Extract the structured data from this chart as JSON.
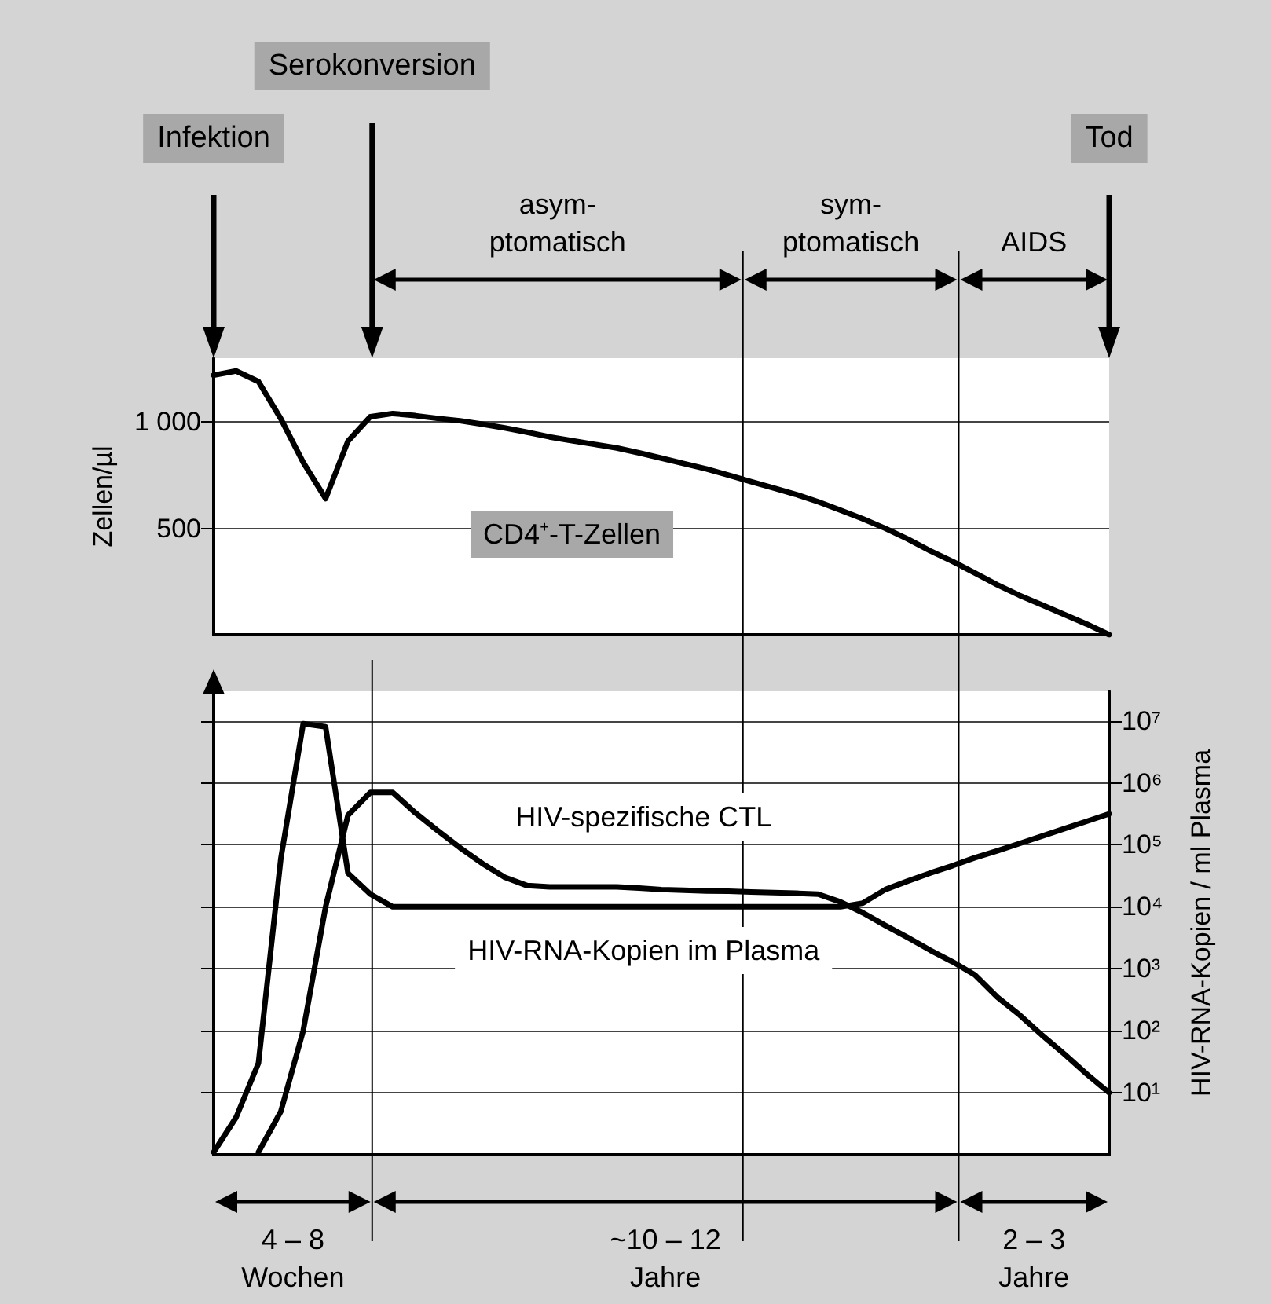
{
  "chart_data": [
    {
      "type": "line",
      "ylabel": "Zellen/µl",
      "categories": [
        null,
        null,
        null,
        null,
        null,
        null,
        null,
        null,
        null,
        null,
        null,
        null,
        null,
        null,
        null,
        null,
        null,
        null,
        null,
        null,
        null,
        null,
        null,
        null,
        null,
        null,
        null,
        null,
        null,
        null,
        null,
        null,
        null,
        null,
        null,
        null,
        null,
        null,
        null,
        null,
        null
      ],
      "ylim": [
        0,
        1300
      ],
      "yticks": [
        500,
        {
          "value": 1000,
          "label": "1 000"
        }
      ],
      "tick_labels": "y",
      "grid": "y",
      "marker": "none",
      "line_style": "solid",
      "series": [
        {
          "color": "#000000",
          "values": [
            1220,
            1240,
            1190,
            1015,
            810,
            640,
            910,
            1025,
            1040,
            1030,
            1017,
            1006,
            990,
            972,
            952,
            930,
            912,
            895,
            878,
            855,
            830,
            805,
            780,
            750,
            720,
            690,
            660,
            625,
            585,
            545,
            500,
            450,
            395,
            345,
            290,
            235,
            185,
            140,
            95,
            50,
            0
          ]
        }
      ],
      "annotations": [
        "Infektion",
        "Serokonversion",
        "Tod",
        "asym-\nptomatisch",
        "sym-\nptomatisch",
        "AIDS",
        "CD4⁺-T-Zellen"
      ]
    },
    {
      "type": "line",
      "ylabel": "HIV-RNA-Kopien / ml Plasma",
      "categories": [
        null,
        null,
        null,
        null,
        null,
        null,
        null,
        null,
        null,
        null,
        null,
        null,
        null,
        null,
        null,
        null,
        null,
        null,
        null,
        null,
        null,
        null,
        null,
        null,
        null,
        null,
        null,
        null,
        null,
        null,
        null,
        null,
        null,
        null,
        null,
        null,
        null,
        null,
        null,
        null,
        null
      ],
      "ylim": [
        1,
        30000000
      ],
      "log": true,
      "yticks": [
        {
          "value": 10,
          "label": "10¹"
        },
        {
          "value": 100,
          "label": "10²"
        },
        {
          "value": 1000,
          "label": "10³"
        },
        {
          "value": 10000,
          "label": "10⁴"
        },
        {
          "value": 100000,
          "label": "10⁵"
        },
        {
          "value": 1000000,
          "label": "10⁶"
        },
        {
          "value": 10000000,
          "label": "10⁷"
        }
      ],
      "grid": "y",
      "marker": "none",
      "line_style": "solid",
      "series": [
        {
          "color": "#000000",
          "values": [
            1.1,
            4,
            30,
            60000,
            9000000,
            8000000,
            35000,
            16000,
            10000,
            10000,
            10000,
            10000,
            10000,
            10000,
            10000,
            10000,
            10000,
            10000,
            10000,
            10000,
            10000,
            10000,
            10000,
            10000,
            10000,
            10000,
            10000,
            10000,
            10000,
            11500,
            19000,
            26000,
            35000,
            46000,
            62000,
            80000,
            105000,
            138000,
            182000,
            240000,
            316000
          ]
        },
        {
          "color": "#000000",
          "values": [
            null,
            null,
            1.1,
            5,
            100,
            10000,
            300000,
            700000,
            700000,
            330000,
            170000,
            90000,
            50000,
            30000,
            22000,
            21000,
            21000,
            21000,
            21000,
            20000,
            19000,
            18500,
            18000,
            17800,
            17400,
            17000,
            16600,
            16000,
            12000,
            8000,
            5000,
            3200,
            2000,
            1300,
            800,
            350,
            180,
            85,
            42,
            20,
            10
          ]
        }
      ],
      "annotations": [
        "HIV-spezifische CTL",
        "HIV-RNA-Kopien im Plasma",
        "4 – 8\nWochen",
        "~10 – 12\nJahre",
        "2 – 3\nJahre"
      ]
    }
  ]
}
